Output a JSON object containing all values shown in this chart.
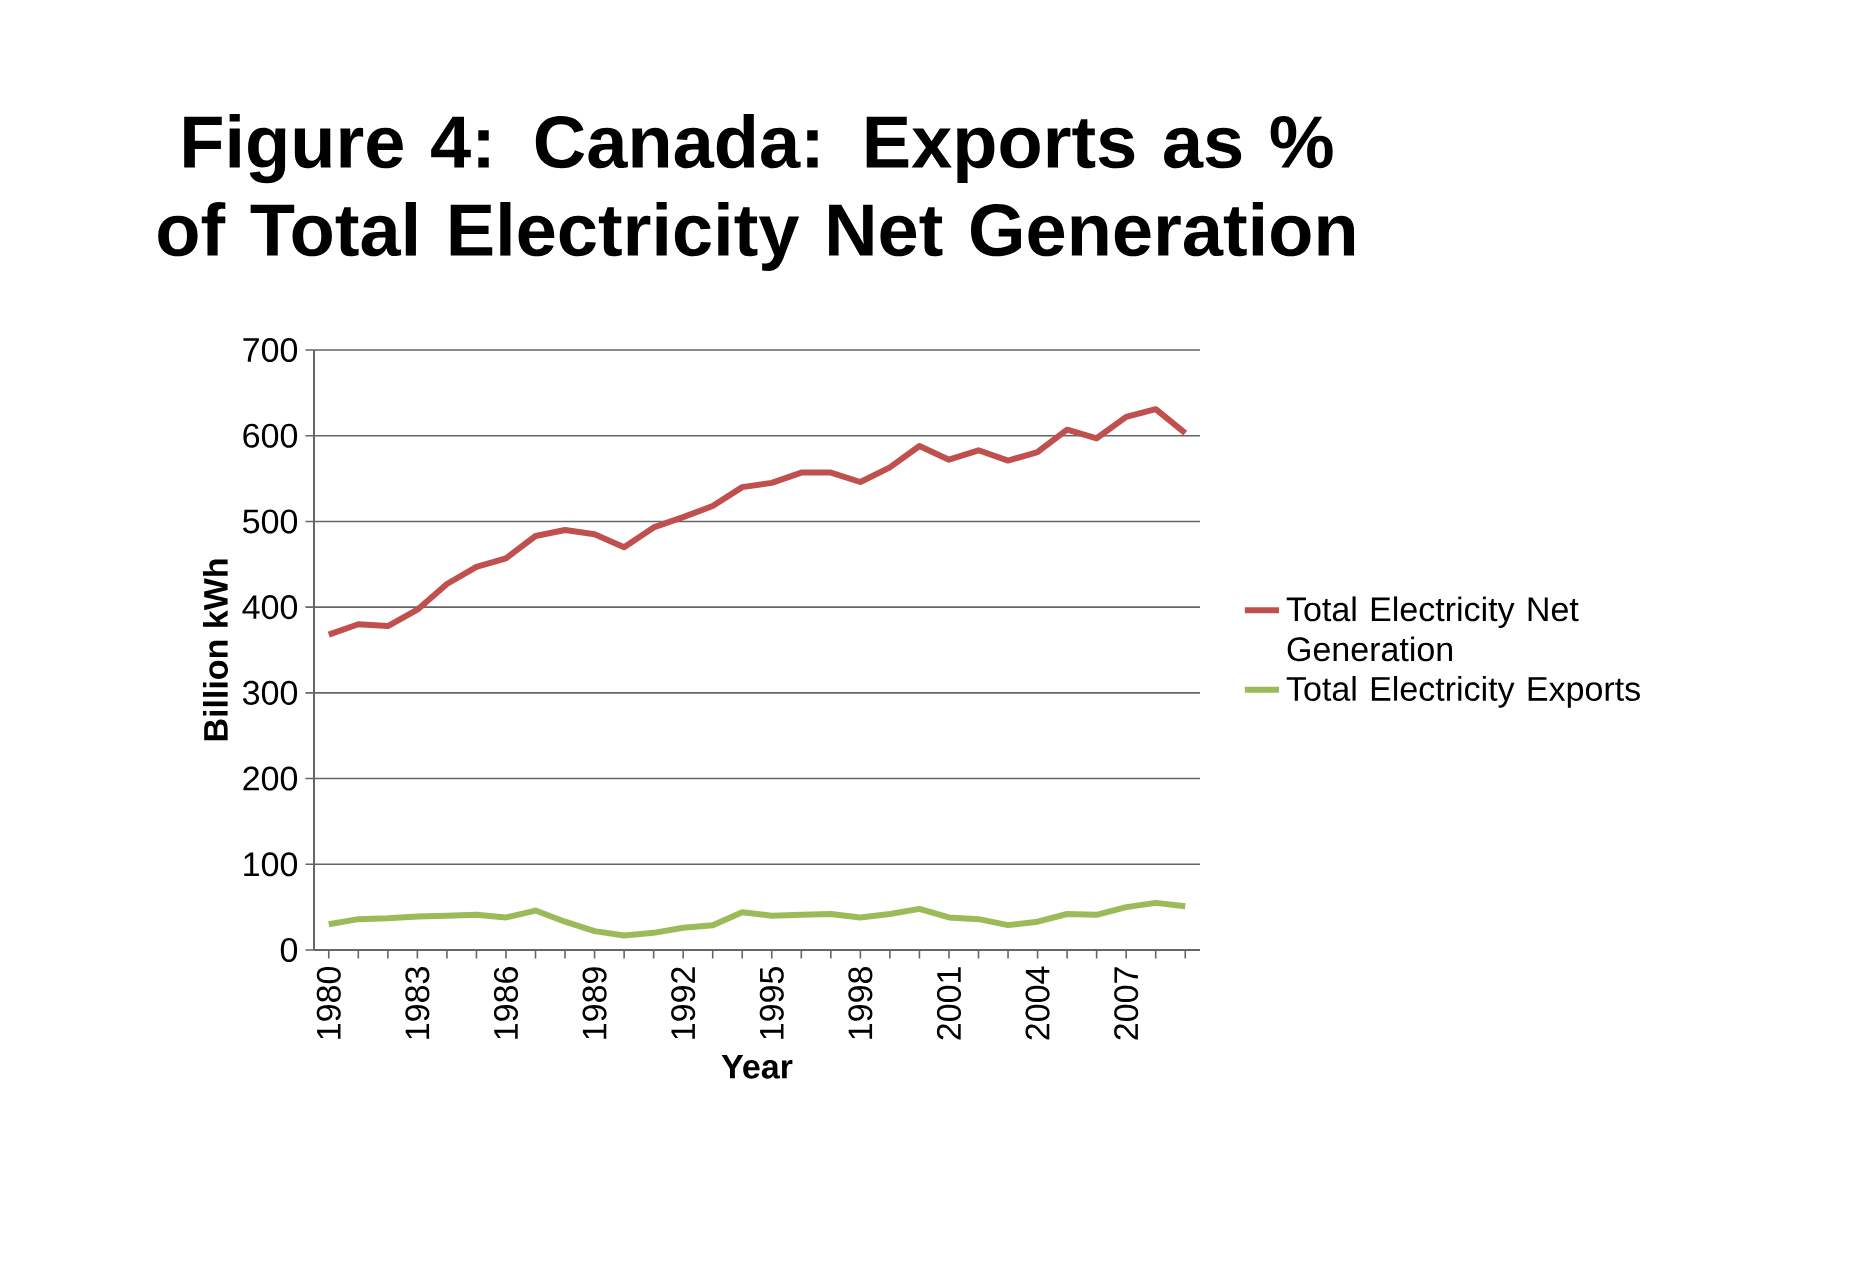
{
  "chart_data": {
    "type": "line",
    "title": "Figure 4: Canada: Exports as % of Total Electricity Net Generation",
    "xlabel": "Year",
    "ylabel": "Billion kWh",
    "categories": [
      "1980",
      null,
      null,
      "1983",
      null,
      null,
      "1986",
      null,
      null,
      "1989",
      null,
      null,
      "1992",
      null,
      null,
      "1995",
      null,
      null,
      "1998",
      null,
      null,
      "2001",
      null,
      null,
      "2004",
      null,
      null,
      "2007",
      null,
      null
    ],
    "series": [
      {
        "name": "Total Electricity Net Generation",
        "color": "#c0504d",
        "values": [
          368,
          380,
          378,
          397,
          427,
          447,
          457,
          483,
          490,
          485,
          470,
          493,
          505,
          518,
          540,
          545,
          557,
          557,
          546,
          563,
          588,
          572,
          583,
          571,
          581,
          607,
          597,
          622,
          631,
          603
        ]
      },
      {
        "name": "Total Electricity Exports",
        "color": "#9bbb59",
        "values": [
          30,
          36,
          37,
          39,
          40,
          41,
          38,
          46,
          33,
          22,
          17,
          20,
          26,
          29,
          44,
          40,
          41,
          42,
          38,
          42,
          48,
          38,
          36,
          29,
          33,
          42,
          41,
          50,
          55,
          51
        ]
      }
    ],
    "ylim": [
      0,
      700
    ],
    "yticks": [
      0,
      100,
      200,
      300,
      400,
      500,
      600,
      700
    ],
    "grid": "y",
    "legend": "right",
    "marker": "none",
    "line_style": "solid"
  }
}
